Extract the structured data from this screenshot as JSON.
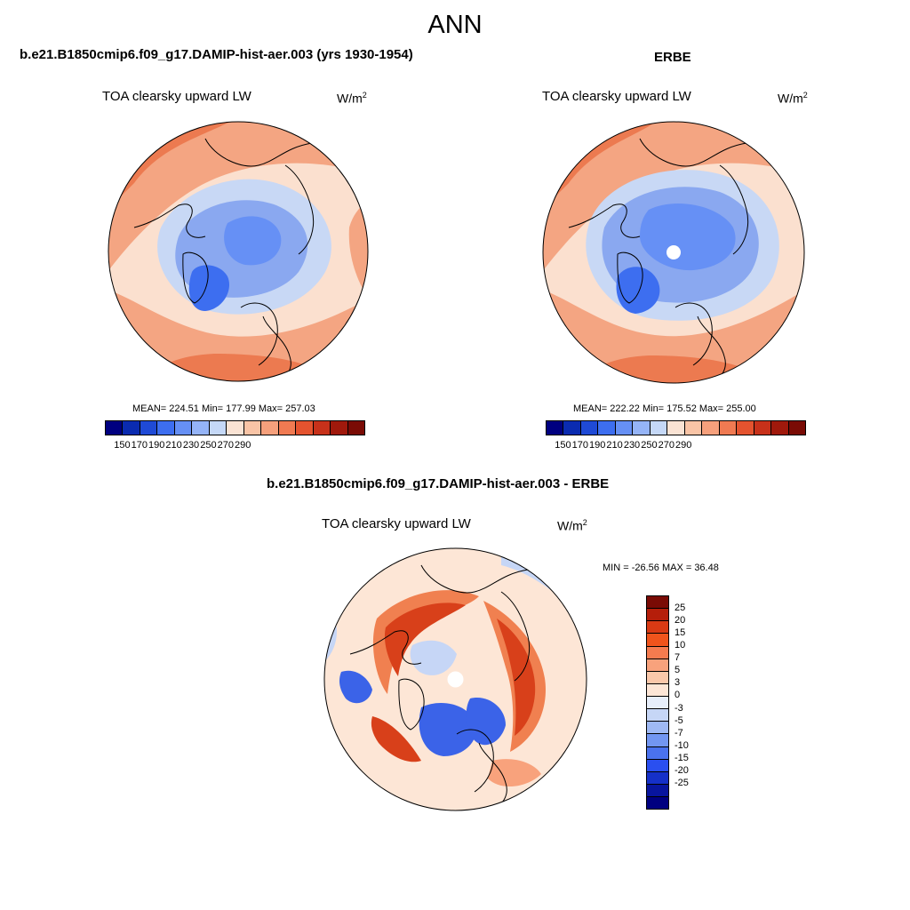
{
  "figure": {
    "title": "ANN"
  },
  "panels": [
    {
      "title": "b.e21.B1850cmip6.f09_g17.DAMIP-hist-aer.003 (yrs 1930-1954)",
      "variable": "TOA clearsky upward LW",
      "units": "W/m",
      "units_exp": "2",
      "stats": "MEAN= 224.51  Min= 177.99  Max= 257.03"
    },
    {
      "title": "ERBE",
      "variable": "TOA clearsky upward LW",
      "units": "W/m",
      "units_exp": "2",
      "stats": "MEAN= 222.22  Min= 175.52  Max= 255.00"
    },
    {
      "title": "b.e21.B1850cmip6.f09_g17.DAMIP-hist-aer.003 - ERBE",
      "variable": "TOA clearsky upward LW",
      "units": "W/m",
      "units_exp": "2",
      "stats": "MIN = -26.56 MAX =  36.48"
    }
  ],
  "colorbars": {
    "absolute": {
      "colors": [
        "#000080",
        "#0a2bb0",
        "#1f4ad6",
        "#3d6ef0",
        "#6690f5",
        "#95b4f7",
        "#c5d8f7",
        "#fae3d4",
        "#f9c4a6",
        "#f6a07c",
        "#f07a52",
        "#e4532f",
        "#c7311a",
        "#a0190c",
        "#7a0b05"
      ],
      "tick_labels": [
        "150",
        "170",
        "190",
        "210",
        "230",
        "250",
        "270",
        "290"
      ]
    },
    "difference": {
      "colors": [
        "#7a0b05",
        "#b51e0a",
        "#d93a14",
        "#f0541c",
        "#f57b4f",
        "#f8a27c",
        "#fac8aa",
        "#fde6d6",
        "#e7eefa",
        "#c6d6f6",
        "#9fb9f4",
        "#7296f1",
        "#4a72ee",
        "#2a4ff0",
        "#1530c8",
        "#08159e",
        "#000080"
      ],
      "tick_labels": [
        "25",
        "20",
        "15",
        "10",
        "7",
        "5",
        "3",
        "0",
        "-3",
        "-5",
        "-7",
        "-10",
        "-15",
        "-20",
        "-25"
      ]
    }
  },
  "maps": {
    "palette": {
      "ocean_abs_warm": "#f4a582",
      "ocean_abs_warmer": "#ec7a50",
      "ocean_abs_pale": "#fbe0cf",
      "arctic_abs_cool": "#c8d8f5",
      "arctic_abs_blue": "#8aa8f0",
      "greenland_abs": "#4f78e6",
      "diff_base": "#fde6d6",
      "diff_warm": "#f08050",
      "diff_red": "#d8401a",
      "diff_blue": "#3b63e8",
      "diff_pale_blue": "#c6d6f6"
    }
  }
}
